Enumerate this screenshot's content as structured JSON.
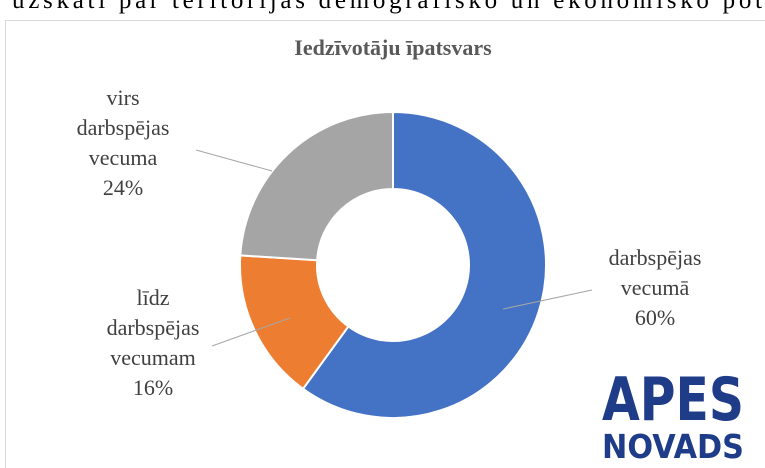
{
  "document_text": "uzskati par teritorijas demogrāfisko un ekonomisko pot",
  "chart_data": {
    "type": "donut",
    "title": "Iedzīvotāju īpatsvars",
    "categories": [
      "darbspējas vecumā",
      "līdz darbspējas vecumam",
      "virs darbspējas vecuma"
    ],
    "values": [
      60,
      16,
      24
    ],
    "value_labels": [
      "60%",
      "16%",
      "24%"
    ],
    "colors": [
      "#4472c4",
      "#ed7d31",
      "#a5a5a5"
    ]
  },
  "logo": {
    "line1": "APES",
    "line2": "NOVADS"
  }
}
